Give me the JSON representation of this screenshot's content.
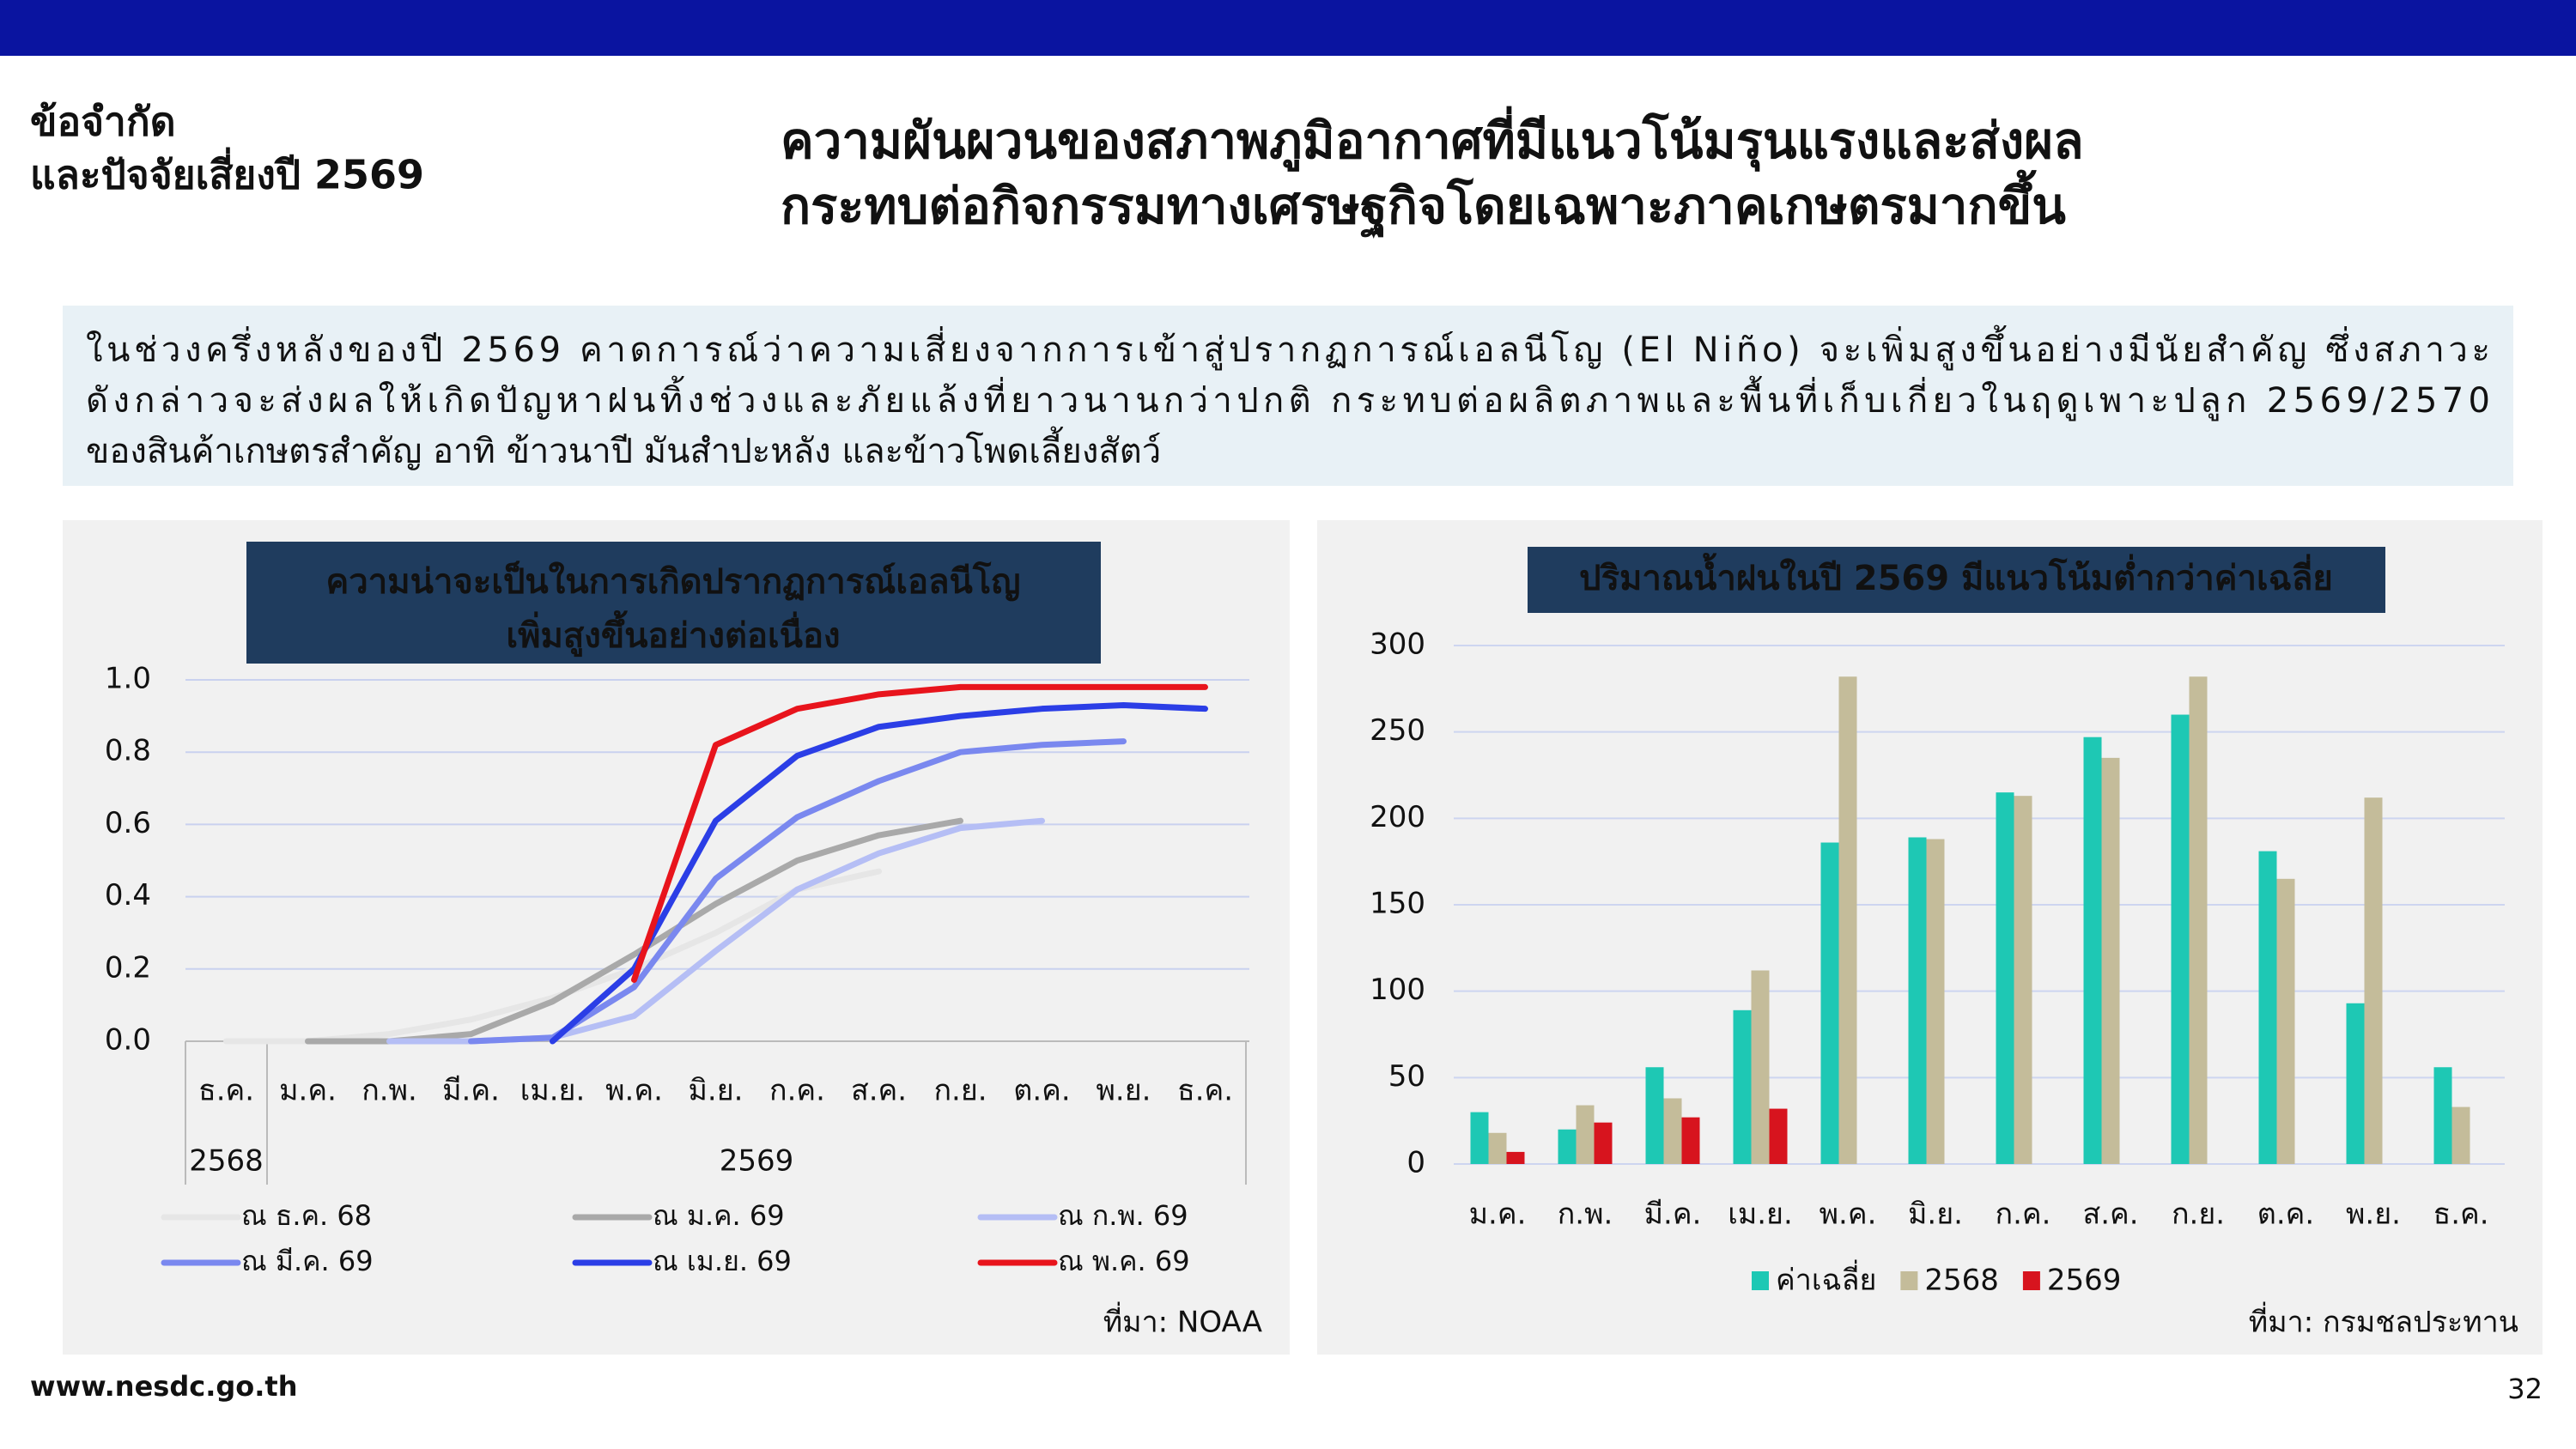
{
  "header": {
    "section": [
      "ข้อจำกัด",
      "และปัจจัยเสี่ยงปี 2569"
    ],
    "title": [
      "ความผันผวนของสภาพภูมิอากาศที่มีแนวโน้มรุนแรงและส่งผล",
      "กระทบต่อกิจกรรมทางเศรษฐกิจโดยเฉพาะภาคเกษตรมากขึ้น"
    ]
  },
  "summary": [
    "ในช่วงครึ่งหลังของปี 2569 คาดการณ์ว่าความเสี่ยงจากการเข้าสู่ปรากฏการณ์เอลนีโญ (El Niño) จะเพิ่มสูงขึ้นอย่างมีนัยสำคัญ ซึ่งสภาวะ",
    "ดังกล่าวจะส่งผลให้เกิดปัญหาฝนทิ้งช่วงและภัยแล้งที่ยาวนานกว่าปกติ กระทบต่อผลิตภาพและพื้นที่เก็บเกี่ยวในฤดูเพาะปลูก 2569/2570",
    "ของสินค้าเกษตรสำคัญ อาทิ ข้าวนาปี มันสำปะหลัง และข้าวโพดเลี้ยงสัตว์"
  ],
  "footer": {
    "url": "www.nesdc.go.th",
    "page": "32"
  },
  "chart_data": [
    {
      "type": "line",
      "title": [
        "ความน่าจะเป็นในการเกิดปรากฏการณ์เอลนีโญ",
        "เพิ่มสูงขึ้นอย่างต่อเนื่อง"
      ],
      "categories": [
        "ธ.ค.",
        "ม.ค.",
        "ก.พ.",
        "มี.ค.",
        "เม.ย.",
        "พ.ค.",
        "มิ.ย.",
        "ก.ค.",
        "ส.ค.",
        "ก.ย.",
        "ต.ค.",
        "พ.ย.",
        "ธ.ค."
      ],
      "category_groups": [
        {
          "label": "2568",
          "span": 1
        },
        {
          "label": "2569",
          "span": 12
        }
      ],
      "ylim": [
        0,
        1
      ],
      "yticks": [
        {
          "value": 0,
          "label": "0.0"
        },
        0.2,
        0.4,
        0.6,
        0.8,
        {
          "value": 1,
          "label": "1.0"
        }
      ],
      "grid": true,
      "series": [
        {
          "name": "ณ ธ.ค. 68",
          "color": "#e6e6e6",
          "values": [
            0,
            0,
            0.02,
            0.06,
            0.12,
            0.2,
            0.3,
            0.42,
            0.47,
            null,
            null,
            null,
            null
          ]
        },
        {
          "name": "ณ ม.ค. 69",
          "color": "#a9a9a9",
          "values": [
            null,
            0,
            0,
            0.02,
            0.11,
            0.24,
            0.38,
            0.5,
            0.57,
            0.61,
            null,
            null,
            null
          ]
        },
        {
          "name": "ณ ก.พ. 69",
          "color": "#b5bef5",
          "values": [
            null,
            null,
            0,
            0,
            0.01,
            0.07,
            0.25,
            0.42,
            0.52,
            0.59,
            0.61,
            null,
            null
          ]
        },
        {
          "name": "ณ มี.ค. 69",
          "color": "#7a88ef",
          "values": [
            null,
            null,
            null,
            0,
            0.01,
            0.15,
            0.45,
            0.62,
            0.72,
            0.8,
            0.82,
            0.83,
            null
          ]
        },
        {
          "name": "ณ เม.ย. 69",
          "color": "#2b3ee6",
          "values": [
            null,
            null,
            null,
            null,
            0,
            0.2,
            0.61,
            0.79,
            0.87,
            0.9,
            0.92,
            0.93,
            0.92
          ]
        },
        {
          "name": "ณ พ.ค. 69",
          "color": "#e8141c",
          "values": [
            null,
            null,
            null,
            null,
            null,
            0.17,
            0.82,
            0.92,
            0.96,
            0.98,
            0.98,
            0.98,
            0.98
          ]
        }
      ],
      "source": "ที่มา: NOAA"
    },
    {
      "type": "bar",
      "title": [
        "ปริมาณน้ำฝนในปี 2569 มีแนวโน้มต่ำกว่าค่าเฉลี่ย"
      ],
      "categories": [
        "ม.ค.",
        "ก.พ.",
        "มี.ค.",
        "เม.ย.",
        "พ.ค.",
        "มิ.ย.",
        "ก.ค.",
        "ส.ค.",
        "ก.ย.",
        "ต.ค.",
        "พ.ย.",
        "ธ.ค."
      ],
      "ylim": [
        0,
        300
      ],
      "yticks": [
        0,
        50,
        100,
        150,
        200,
        250,
        300
      ],
      "grid": true,
      "series": [
        {
          "name": "ค่าเฉลี่ย",
          "color": "#1ec8b4",
          "values": [
            30,
            20,
            56,
            89,
            186,
            189,
            215,
            247,
            260,
            181,
            93,
            56
          ]
        },
        {
          "name": "2568",
          "color": "#c4bc9a",
          "values": [
            18,
            34,
            38,
            112,
            282,
            188,
            213,
            235,
            282,
            165,
            212,
            33
          ]
        },
        {
          "name": "2569",
          "color": "#d7141e",
          "values": [
            7,
            24,
            27,
            32,
            null,
            null,
            null,
            null,
            null,
            null,
            null,
            null
          ]
        }
      ],
      "source": "ที่มา: กรมชลประทาน"
    }
  ]
}
